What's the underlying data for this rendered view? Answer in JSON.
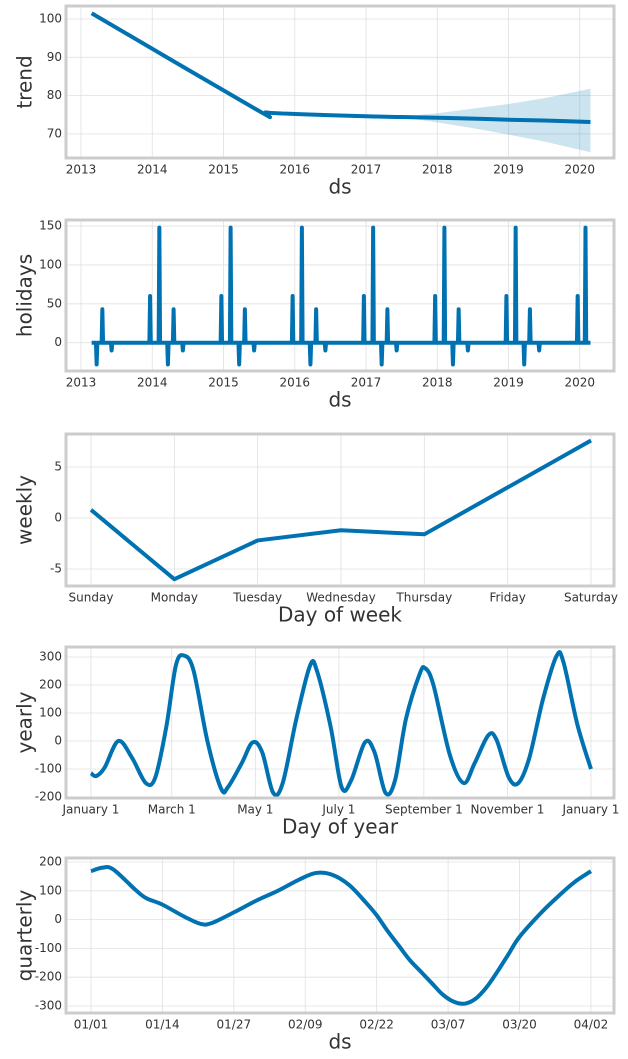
{
  "chart_data": [
    {
      "type": "line",
      "ylabel": "trend",
      "xlabel": "ds",
      "color": "#0072B2",
      "grid": true,
      "x": [
        2013.15,
        2015.45,
        2015.6,
        2016.0,
        2017.0,
        2017.5,
        2018.0,
        2018.5,
        2019.0,
        2019.5,
        2020.15
      ],
      "values": [
        101.5,
        76.5,
        75.6,
        75.2,
        74.6,
        74.4,
        74.2,
        74.0,
        73.7,
        73.5,
        73.1
      ],
      "lower": [
        101.5,
        76.5,
        75.6,
        75.2,
        74.6,
        74.3,
        73.0,
        71.5,
        69.8,
        68.0,
        65.2
      ],
      "upper": [
        101.5,
        76.5,
        75.6,
        75.2,
        74.6,
        74.5,
        75.4,
        76.6,
        77.8,
        79.3,
        81.8
      ],
      "xlim": [
        2012.79,
        2020.48
      ],
      "xticks": [
        2013,
        2014,
        2015,
        2016,
        2017,
        2018,
        2019,
        2020
      ],
      "ylim": [
        63.7,
        103.4
      ],
      "yticks": [
        70,
        80,
        90,
        100
      ]
    },
    {
      "type": "line",
      "ylabel": "holidays",
      "xlabel": "ds",
      "color": "#0072B2",
      "grid": true,
      "x": [
        2013.15,
        2013.21,
        2013.22,
        2013.23,
        2013.29,
        2013.3,
        2013.31,
        2013.42,
        2013.43,
        2013.44,
        2013.96,
        2013.97,
        2013.98,
        2014.09,
        2014.1,
        2014.11,
        2014.21,
        2014.22,
        2014.23,
        2014.29,
        2014.3,
        2014.31,
        2014.42,
        2014.43,
        2014.44,
        2014.96,
        2014.97,
        2014.98,
        2015.09,
        2015.1,
        2015.11,
        2015.21,
        2015.22,
        2015.23,
        2015.29,
        2015.3,
        2015.31,
        2015.42,
        2015.43,
        2015.44,
        2015.96,
        2015.97,
        2015.98,
        2016.09,
        2016.1,
        2016.11,
        2016.21,
        2016.22,
        2016.23,
        2016.29,
        2016.3,
        2016.31,
        2016.42,
        2016.43,
        2016.44,
        2016.96,
        2016.97,
        2016.98,
        2017.09,
        2017.1,
        2017.11,
        2017.21,
        2017.22,
        2017.23,
        2017.29,
        2017.3,
        2017.31,
        2017.42,
        2017.43,
        2017.44,
        2017.96,
        2017.97,
        2017.98,
        2018.09,
        2018.1,
        2018.11,
        2018.21,
        2018.22,
        2018.23,
        2018.29,
        2018.3,
        2018.31,
        2018.42,
        2018.43,
        2018.44,
        2018.96,
        2018.97,
        2018.98,
        2019.09,
        2019.1,
        2019.11,
        2019.21,
        2019.22,
        2019.23,
        2019.29,
        2019.3,
        2019.31,
        2019.42,
        2019.43,
        2019.44,
        2019.96,
        2019.97,
        2019.98,
        2020.07,
        2020.08,
        2020.09,
        2020.15
      ],
      "values": [
        0,
        0,
        -28,
        0,
        0,
        43,
        0,
        0,
        -10,
        0,
        0,
        60,
        0,
        0,
        148,
        0,
        0,
        -28,
        0,
        0,
        43,
        0,
        0,
        -10,
        0,
        0,
        60,
        0,
        0,
        148,
        0,
        0,
        -28,
        0,
        0,
        43,
        0,
        0,
        -10,
        0,
        0,
        60,
        0,
        0,
        148,
        0,
        0,
        -28,
        0,
        0,
        43,
        0,
        0,
        -10,
        0,
        0,
        60,
        0,
        0,
        148,
        0,
        0,
        -28,
        0,
        0,
        43,
        0,
        0,
        -10,
        0,
        0,
        60,
        0,
        0,
        148,
        0,
        0,
        -28,
        0,
        0,
        43,
        0,
        0,
        -10,
        0,
        0,
        60,
        0,
        0,
        148,
        0,
        0,
        -28,
        0,
        0,
        43,
        0,
        0,
        -10,
        0,
        0,
        60,
        0,
        0,
        148,
        0,
        0
      ],
      "xlim": [
        2012.79,
        2020.48
      ],
      "xticks": [
        2013,
        2014,
        2015,
        2016,
        2017,
        2018,
        2019,
        2020
      ],
      "ylim": [
        -36.4,
        157.8
      ],
      "yticks": [
        0,
        50,
        100,
        150
      ]
    },
    {
      "type": "line",
      "ylabel": "weekly",
      "xlabel": "Day of week",
      "color": "#0072B2",
      "grid": true,
      "categories": [
        "Sunday",
        "Monday",
        "Tuesday",
        "Wednesday",
        "Thursday",
        "Friday",
        "Saturday"
      ],
      "values": [
        0.8,
        -6.0,
        -2.2,
        -1.2,
        -1.6,
        3.0,
        7.6
      ],
      "ylim": [
        -6.67,
        8.24
      ],
      "yticks": [
        -5,
        0,
        5
      ]
    },
    {
      "type": "line",
      "ylabel": "yearly",
      "xlabel": "Day of year",
      "color": "#0072B2",
      "grid": true,
      "x": [
        0,
        4,
        10,
        20,
        30,
        40,
        47,
        55,
        62,
        68,
        75,
        85,
        95,
        100,
        110,
        118,
        125,
        133,
        140,
        150,
        160,
        165,
        175,
        183,
        190,
        200,
        207,
        215,
        222,
        230,
        240,
        244,
        250,
        262,
        272,
        280,
        290,
        296,
        305,
        312,
        320,
        330,
        340,
        345,
        355,
        365
      ],
      "values": [
        -115,
        -125,
        -95,
        0,
        -60,
        -150,
        -130,
        50,
        270,
        305,
        250,
        0,
        -170,
        -165,
        -80,
        -5,
        -40,
        -185,
        -150,
        80,
        270,
        250,
        50,
        -165,
        -140,
        -5,
        -40,
        -185,
        -140,
        80,
        240,
        260,
        200,
        -50,
        -150,
        -80,
        20,
        5,
        -130,
        -150,
        -60,
        150,
        305,
        280,
        60,
        -100
      ],
      "xlim": [
        -18.2,
        381.8
      ],
      "xticks": [
        {
          "value": 0,
          "label": "January 1"
        },
        {
          "value": 59,
          "label": "March 1"
        },
        {
          "value": 120,
          "label": "May 1"
        },
        {
          "value": 181,
          "label": "July 1"
        },
        {
          "value": 243,
          "label": "September 1"
        },
        {
          "value": 304,
          "label": "November 1"
        },
        {
          "value": 365,
          "label": "January 1"
        }
      ],
      "ylim": [
        -203.6,
        335.7
      ],
      "yticks": [
        -200,
        -100,
        0,
        100,
        200,
        300
      ]
    },
    {
      "type": "line",
      "ylabel": "quarterly",
      "xlabel": "ds",
      "color": "#0072B2",
      "grid": true,
      "x": [
        0,
        2,
        4,
        8,
        10,
        13,
        17,
        20,
        22,
        26,
        30,
        34,
        38,
        41,
        44,
        47,
        50,
        52,
        54,
        56,
        58,
        60,
        62,
        64,
        66,
        68,
        70,
        72,
        74,
        76,
        78,
        82,
        85,
        88,
        91
      ],
      "values": [
        168,
        180,
        175,
        105,
        75,
        52,
        10,
        -15,
        -12,
        25,
        65,
        100,
        140,
        162,
        155,
        120,
        60,
        15,
        -40,
        -90,
        -140,
        -180,
        -220,
        -260,
        -285,
        -292,
        -275,
        -235,
        -180,
        -120,
        -60,
        25,
        80,
        130,
        168
      ],
      "xlim": [
        -4.55,
        95.2
      ],
      "xticks": [
        {
          "value": 0,
          "label": "01/01"
        },
        {
          "value": 13,
          "label": "01/14"
        },
        {
          "value": 26,
          "label": "01/27"
        },
        {
          "value": 39,
          "label": "02/09"
        },
        {
          "value": 52,
          "label": "02/22"
        },
        {
          "value": 65,
          "label": "03/07"
        },
        {
          "value": 78,
          "label": "03/20"
        },
        {
          "value": 91,
          "label": "04/02"
        }
      ],
      "ylim": [
        -324.4,
        213.9
      ],
      "yticks": [
        -300,
        -200,
        -100,
        0,
        100,
        200
      ]
    }
  ]
}
